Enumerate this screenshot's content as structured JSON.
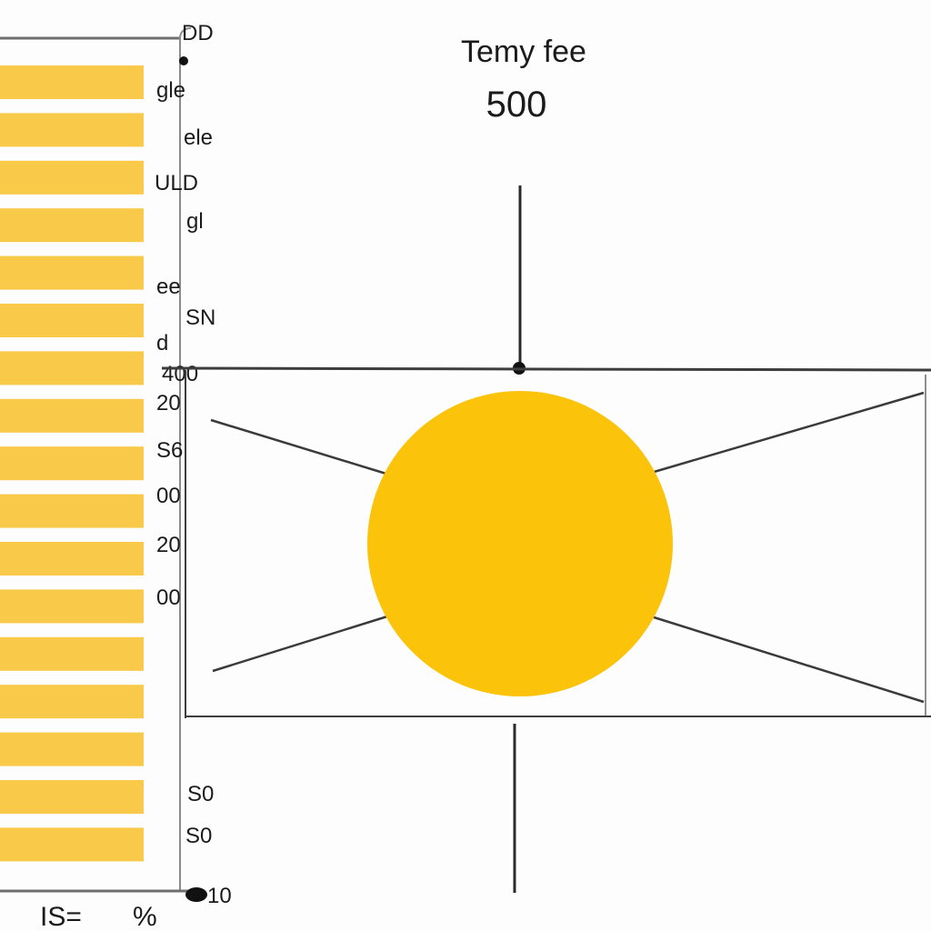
{
  "chart_data": {
    "type": "bar",
    "title": "Temy fee",
    "subtitle": "500",
    "orientation": "horizontal",
    "bar_color": "#f9c94a",
    "circle_color": "#fbc30a",
    "tick_labels": [
      "DD",
      "gle",
      "ele",
      "ULD",
      "gl",
      "ee",
      "SN",
      "d",
      "400",
      "20",
      "S6",
      "00",
      "20",
      "00",
      "",
      "",
      "S0",
      "S0",
      "10"
    ],
    "bar_count": 17,
    "bars": [
      {
        "value": 1
      },
      {
        "value": 1
      },
      {
        "value": 1
      },
      {
        "value": 1
      },
      {
        "value": 1
      },
      {
        "value": 1
      },
      {
        "value": 1
      },
      {
        "value": 1
      },
      {
        "value": 1
      },
      {
        "value": 1
      },
      {
        "value": 1
      },
      {
        "value": 1
      },
      {
        "value": 1
      },
      {
        "value": 1
      },
      {
        "value": 1
      },
      {
        "value": 1
      },
      {
        "value": 1
      }
    ],
    "bottom_labels": [
      "IS=",
      "%"
    ],
    "grid": false,
    "legend": "none"
  }
}
